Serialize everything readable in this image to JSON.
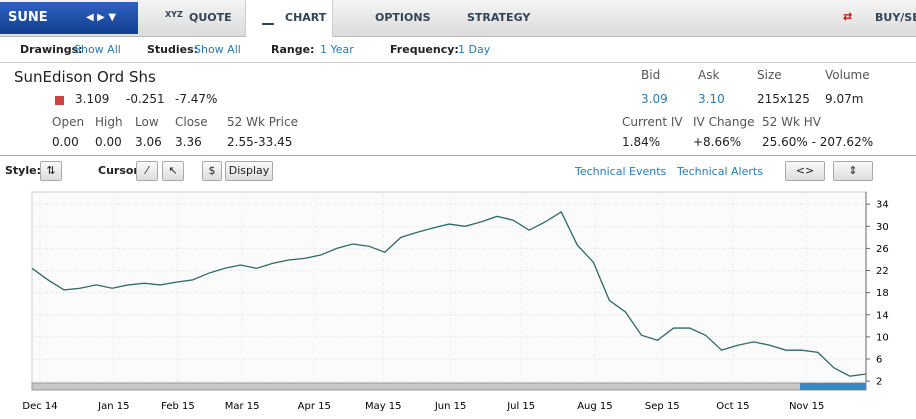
{
  "nav": {
    "symbol": "SUNE",
    "tabs": [
      "QUOTE",
      "CHART",
      "OPTIONS",
      "STRATEGY"
    ],
    "buy_sell": "BUY/SEL",
    "quote_badge": "XYZ"
  },
  "toolbar": {
    "drawings_label": "Drawings:",
    "drawings": "Show All",
    "studies_label": "Studies:",
    "studies": "Show All",
    "range_label": "Range:",
    "range": "1 Year",
    "frequency_label": "Frequency:",
    "frequency": "1 Day"
  },
  "quote": {
    "name": "SunEdison Ord Shs",
    "last": "3.109",
    "change": "-0.251",
    "change_pct": "-7.47%",
    "headers": [
      "Bid",
      "Ask",
      "Size",
      "Volume"
    ],
    "values": [
      "3.09",
      "3.10",
      "215x125",
      "9.07m"
    ],
    "price_headers": [
      "Open",
      "High",
      "Low",
      "Close",
      "52 Wk Price"
    ],
    "price_values": [
      "0.00",
      "0.00",
      "3.06",
      "3.36",
      "2.55-33.45"
    ],
    "iv_headers": [
      "Current IV",
      "IV Change",
      "52 Wk HV"
    ],
    "iv_values": [
      "1.84%",
      "+8.66%",
      "25.60% - 207.62%"
    ]
  },
  "stylebar": {
    "style_label": "Style:",
    "cursor_label": "Cursor:",
    "display": "Display",
    "events": "Technical Events",
    "alerts": "Technical Alerts"
  },
  "chart_data": {
    "type": "line",
    "color": "#2f6a66",
    "values": [
      22.4,
      20.3,
      18.5,
      18.8,
      19.4,
      18.8,
      19.4,
      19.7,
      19.4,
      19.9,
      20.3,
      21.5,
      22.4,
      23,
      22.4,
      23.3,
      23.9,
      24.2,
      24.8,
      26,
      26.8,
      26.4,
      25.3,
      28,
      28.9,
      29.7,
      30.4,
      30,
      30.8,
      31.8,
      31.1,
      29.3,
      30.8,
      32.6,
      26.6,
      23.5,
      16.6,
      14.5,
      10.3,
      9.4,
      11.6,
      11.6,
      10.3,
      7.6,
      8.5,
      9.1,
      8.5,
      7.6,
      7.6,
      7.2,
      4.4,
      2.9,
      3.3
    ],
    "xlim": [
      0,
      52
    ],
    "xticks": [
      {
        "value": 0.5,
        "label": "Dec 14"
      },
      {
        "value": 5.1,
        "label": "Jan 15"
      },
      {
        "value": 9.1,
        "label": "Feb 15"
      },
      {
        "value": 13.1,
        "label": "Mar 15"
      },
      {
        "value": 17.6,
        "label": "Apr 15"
      },
      {
        "value": 21.9,
        "label": "May 15"
      },
      {
        "value": 26.1,
        "label": "Jun 15"
      },
      {
        "value": 30.5,
        "label": "Jul 15"
      },
      {
        "value": 35.1,
        "label": "Aug 15"
      },
      {
        "value": 39.3,
        "label": "Sep 15"
      },
      {
        "value": 43.7,
        "label": "Oct 15"
      },
      {
        "value": 48.3,
        "label": "Nov 15"
      }
    ],
    "ylim": [
      0.4,
      36.2
    ],
    "yticks": [
      2,
      6,
      10,
      14,
      18,
      22,
      26,
      30,
      34
    ],
    "grid": true
  }
}
